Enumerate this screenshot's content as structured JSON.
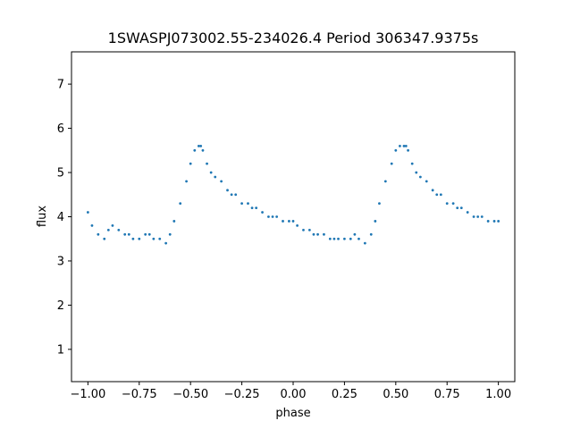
{
  "chart_data": {
    "type": "scatter",
    "title": "1SWASPJ073002.55-234026.4 Period 306347.9375s",
    "xlabel": "phase",
    "ylabel": "flux",
    "xlim": [
      -1.08,
      1.08
    ],
    "ylim": [
      0.27,
      7.73
    ],
    "xticks": [
      -1.0,
      -0.75,
      -0.5,
      -0.25,
      0.0,
      0.25,
      0.5,
      0.75,
      1.0
    ],
    "xtick_labels": [
      "−1.00",
      "−0.75",
      "−0.50",
      "−0.25",
      "0.00",
      "0.25",
      "0.50",
      "0.75",
      "1.00"
    ],
    "yticks": [
      1,
      2,
      3,
      4,
      5,
      6,
      7
    ],
    "ytick_labels": [
      "1",
      "2",
      "3",
      "4",
      "5",
      "6",
      "7"
    ],
    "grid": false,
    "point_color": "#1f77b4",
    "series": [
      {
        "x": [
          -1.0,
          -0.98,
          -0.95,
          -0.92,
          -0.9,
          -0.88,
          -0.85,
          -0.82,
          -0.8,
          -0.78,
          -0.75,
          -0.72,
          -0.7,
          -0.68,
          -0.65,
          -0.62,
          -0.6,
          -0.58,
          -0.55,
          -0.52,
          -0.5,
          -0.48,
          -0.46,
          -0.45,
          -0.44,
          -0.42,
          -0.4,
          -0.38,
          -0.35,
          -0.32,
          -0.3,
          -0.28,
          -0.25,
          -0.22,
          -0.2,
          -0.18,
          -0.15,
          -0.12,
          -0.1,
          -0.08,
          -0.05,
          -0.02,
          0.0,
          0.02,
          0.05,
          0.08,
          0.1,
          0.12,
          0.15,
          0.18,
          0.2,
          0.22,
          0.25,
          0.28,
          0.3,
          0.32,
          0.35,
          0.38,
          0.4,
          0.42,
          0.45,
          0.48,
          0.5,
          0.52,
          0.54,
          0.55,
          0.56,
          0.58,
          0.6,
          0.62,
          0.65,
          0.68,
          0.7,
          0.72,
          0.75,
          0.78,
          0.8,
          0.82,
          0.85,
          0.88,
          0.9,
          0.92,
          0.95,
          0.98,
          1.0
        ],
        "y": [
          4.1,
          3.8,
          3.6,
          3.5,
          3.7,
          3.8,
          3.7,
          3.6,
          3.6,
          3.5,
          3.5,
          3.6,
          3.6,
          3.5,
          3.5,
          3.4,
          3.6,
          3.9,
          4.3,
          4.8,
          5.2,
          5.5,
          5.6,
          5.6,
          5.5,
          5.2,
          5.0,
          4.9,
          4.8,
          4.6,
          4.5,
          4.5,
          4.3,
          4.3,
          4.2,
          4.2,
          4.1,
          4.0,
          4.0,
          4.0,
          3.9,
          3.9,
          3.9,
          3.8,
          3.7,
          3.7,
          3.6,
          3.6,
          3.6,
          3.5,
          3.5,
          3.5,
          3.5,
          3.5,
          3.6,
          3.5,
          3.4,
          3.6,
          3.9,
          4.3,
          4.8,
          5.2,
          5.5,
          5.6,
          5.6,
          5.6,
          5.5,
          5.2,
          5.0,
          4.9,
          4.8,
          4.6,
          4.5,
          4.5,
          4.3,
          4.3,
          4.2,
          4.2,
          4.1,
          4.0,
          4.0,
          4.0,
          3.9,
          3.9,
          3.9
        ]
      }
    ]
  }
}
